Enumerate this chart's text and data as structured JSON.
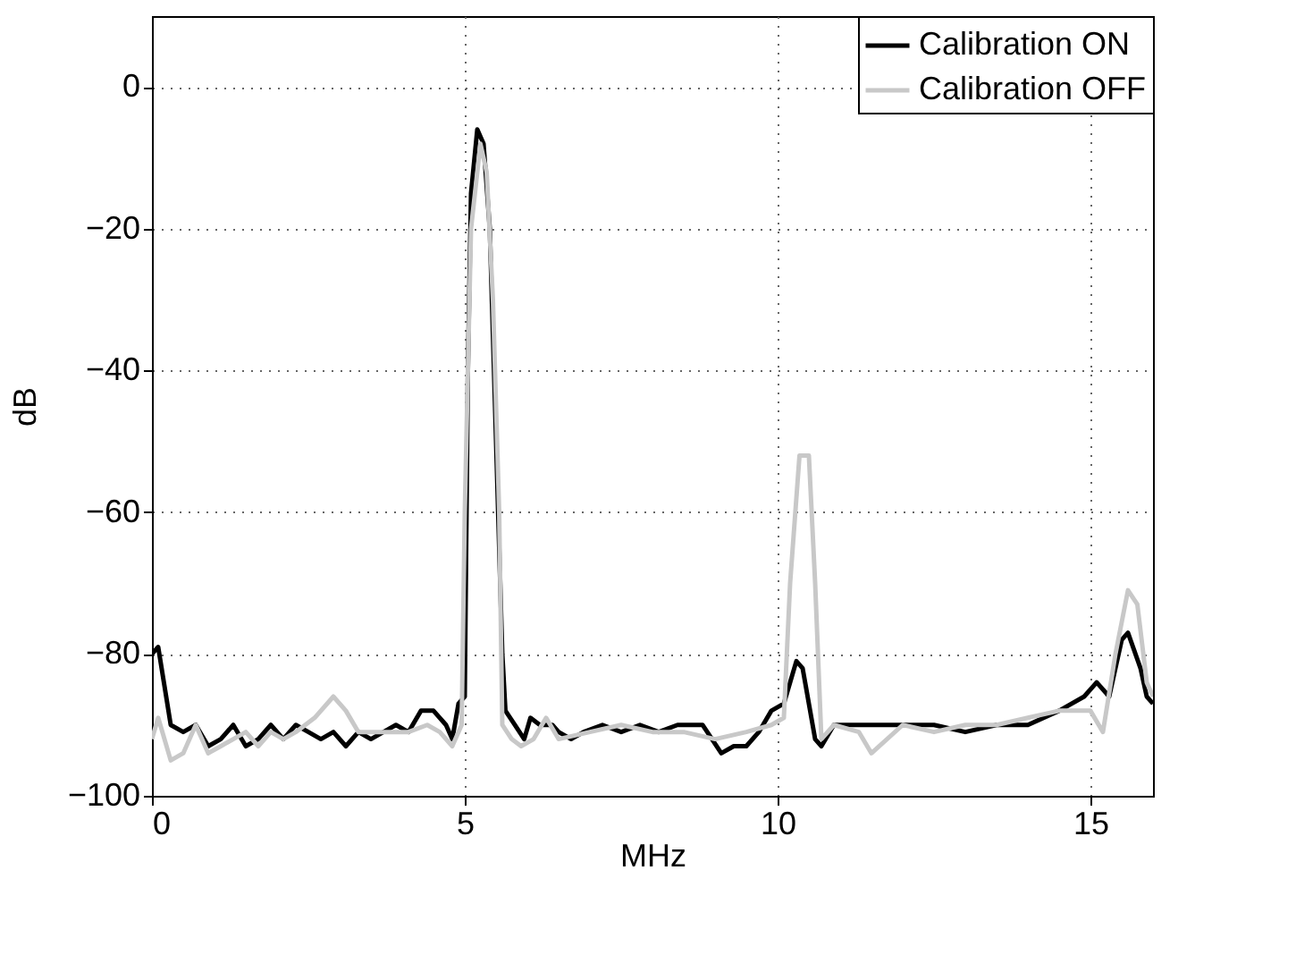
{
  "chart_data": {
    "type": "line",
    "xlabel": "MHz",
    "ylabel": "dB",
    "xlim": [
      0,
      16
    ],
    "xticks": [
      0,
      5,
      10,
      15
    ],
    "ylim": [
      -100,
      10
    ],
    "yticks": [
      {
        "value": -100,
        "label": "−100"
      },
      {
        "value": -80,
        "label": "−80"
      },
      {
        "value": -60,
        "label": "−60"
      },
      {
        "value": -40,
        "label": "−40"
      },
      {
        "value": -20,
        "label": "−20"
      },
      0
    ],
    "grid": true,
    "legend": "top right",
    "line_style": "solid",
    "marker": "none",
    "series": [
      {
        "name": "Calibration ON",
        "color": "#000000",
        "x": [
          0,
          0.1,
          0.3,
          0.5,
          0.7,
          0.9,
          1.1,
          1.3,
          1.5,
          1.7,
          1.9,
          2.1,
          2.3,
          2.5,
          2.7,
          2.9,
          3.1,
          3.3,
          3.5,
          3.7,
          3.9,
          4.1,
          4.3,
          4.5,
          4.7,
          4.8,
          4.9,
          5.0,
          5.05,
          5.1,
          5.2,
          5.3,
          5.4,
          5.5,
          5.6,
          5.65,
          5.8,
          5.95,
          6.05,
          6.2,
          6.4,
          6.5,
          6.7,
          6.9,
          7.2,
          7.5,
          7.8,
          8.1,
          8.4,
          8.8,
          9.1,
          9.3,
          9.5,
          9.7,
          9.9,
          10.1,
          10.3,
          10.4,
          10.6,
          10.7,
          10.9,
          11.5,
          12,
          12.5,
          13,
          13.5,
          14,
          14.5,
          14.9,
          15.1,
          15.3,
          15.5,
          15.6,
          15.8,
          15.9,
          16
        ],
        "values": [
          -80,
          -79,
          -90,
          -91,
          -90,
          -93,
          -92,
          -90,
          -93,
          -92,
          -90,
          -92,
          -90,
          -91,
          -92,
          -91,
          -93,
          -91,
          -92,
          -91,
          -90,
          -91,
          -88,
          -88,
          -90,
          -92,
          -87,
          -86,
          -40,
          -15,
          -6,
          -8,
          -20,
          -50,
          -80,
          -88,
          -90,
          -92,
          -89,
          -90,
          -90,
          -91,
          -92,
          -91,
          -90,
          -91,
          -90,
          -91,
          -90,
          -90,
          -94,
          -93,
          -93,
          -91,
          -88,
          -87,
          -81,
          -82,
          -92,
          -93,
          -90,
          -90,
          -90,
          -90,
          -91,
          -90,
          -90,
          -88,
          -86,
          -84,
          -86,
          -78,
          -77,
          -82,
          -86,
          -87
        ]
      },
      {
        "name": "Calibration OFF",
        "color": "#c8c8c8",
        "x": [
          0,
          0.1,
          0.3,
          0.5,
          0.7,
          0.9,
          1.1,
          1.3,
          1.5,
          1.7,
          1.9,
          2.1,
          2.3,
          2.6,
          2.9,
          3.1,
          3.3,
          3.6,
          4.1,
          4.4,
          4.6,
          4.8,
          4.95,
          5.0,
          5.1,
          5.25,
          5.35,
          5.45,
          5.55,
          5.6,
          5.75,
          5.9,
          6.1,
          6.3,
          6.5,
          7,
          7.5,
          8,
          8.5,
          9,
          9.5,
          9.9,
          10.1,
          10.2,
          10.35,
          10.5,
          10.6,
          10.7,
          10.9,
          11.3,
          11.5,
          12,
          12.5,
          13,
          13.5,
          14,
          14.5,
          15,
          15.2,
          15.4,
          15.6,
          15.75,
          15.9,
          16
        ],
        "values": [
          -92,
          -89,
          -95,
          -94,
          -90,
          -94,
          -93,
          -92,
          -91,
          -93,
          -91,
          -92,
          -91,
          -89,
          -86,
          -88,
          -91,
          -91,
          -91,
          -90,
          -91,
          -93,
          -90,
          -60,
          -20,
          -8,
          -12,
          -30,
          -60,
          -90,
          -92,
          -93,
          -92,
          -89,
          -92,
          -91,
          -90,
          -91,
          -91,
          -92,
          -91,
          -90,
          -89,
          -70,
          -52,
          -52,
          -70,
          -92,
          -90,
          -91,
          -94,
          -90,
          -91,
          -90,
          -90,
          -89,
          -88,
          -88,
          -91,
          -80,
          -71,
          -73,
          -84,
          -86
        ]
      }
    ]
  }
}
